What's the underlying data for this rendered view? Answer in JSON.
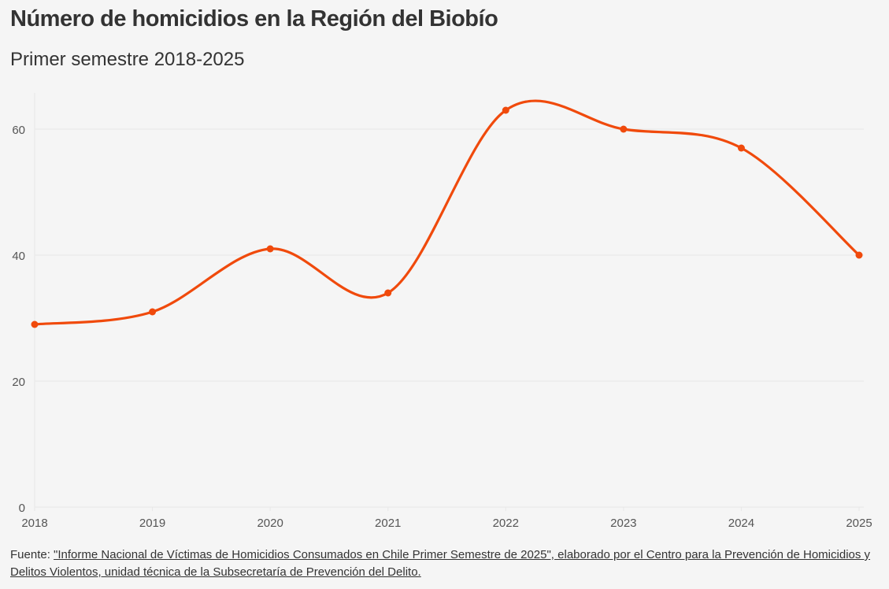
{
  "header": {
    "title": "Número de homicidios en la Región del Biobío",
    "subtitle": "Primer semestre 2018-2025"
  },
  "footer": {
    "prefix": "Fuente: ",
    "source_link": "\"Informe Nacional de Víctimas de Homicidios Consumados en Chile Primer Semestre de 2025\", elaborado por el Centro para la Prevención de Homicidios y Delitos Violentos, unidad técnica de la Subsecretaría de Prevención del Delito."
  },
  "colors": {
    "line": "#f04a0c",
    "grid": "#e8e8e8",
    "background": "#f5f5f5"
  },
  "chart_data": {
    "type": "line",
    "title": "Número de homicidios en la Región del Biobío",
    "subtitle": "Primer semestre 2018-2025",
    "xlabel": "",
    "ylabel": "",
    "x": [
      "2018",
      "2019",
      "2020",
      "2021",
      "2022",
      "2023",
      "2024",
      "2025"
    ],
    "series": [
      {
        "name": "Homicidios",
        "values": [
          29,
          31,
          41,
          34,
          63,
          60,
          57,
          40
        ]
      }
    ],
    "ylim": [
      0,
      65
    ],
    "yticks": [
      0,
      20,
      40,
      60
    ],
    "grid": true,
    "curve": "smooth",
    "markers": true,
    "legend": "none"
  }
}
